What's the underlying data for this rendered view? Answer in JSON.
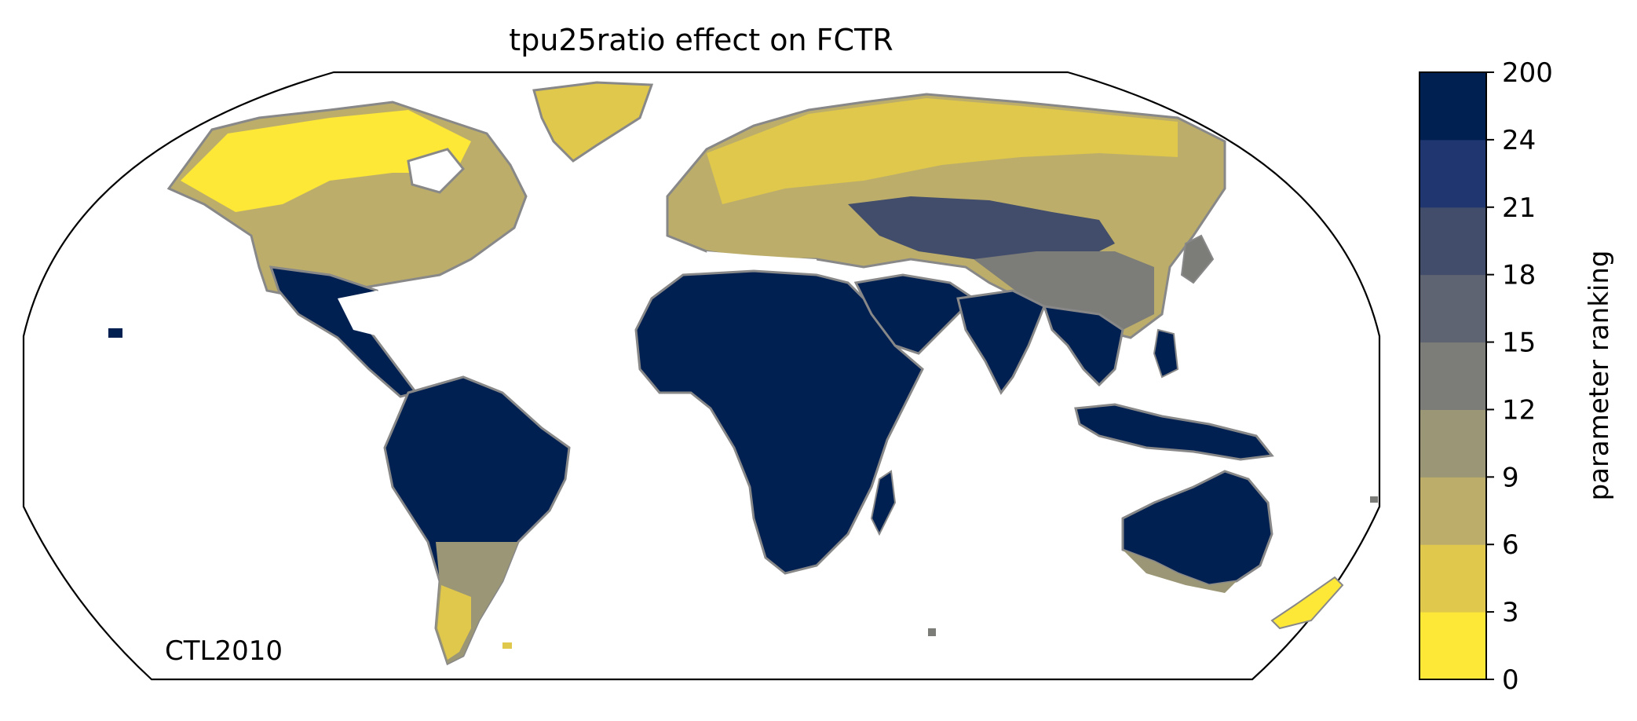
{
  "title": "tpu25ratio effect on FCTR",
  "annotation": "CTL2010",
  "colorbar": {
    "label": "parameter ranking",
    "ticks": [
      "0",
      "3",
      "6",
      "9",
      "12",
      "15",
      "18",
      "21",
      "24",
      "200"
    ],
    "colors": [
      "#fde737",
      "#dfc84c",
      "#bcae6a",
      "#9b9675",
      "#7c7c78",
      "#5f6472",
      "#424d6b",
      "#1f3670",
      "#012052"
    ]
  },
  "map": {
    "projection": "Robinson",
    "ocean_color": "#ffffff",
    "coastline_color": "#888888",
    "land_fill_default": "#012052",
    "regions": [
      {
        "name": "North America",
        "ranking_class": "mixed yellow/tan"
      },
      {
        "name": "Greenland",
        "ranking_class": "yellow"
      },
      {
        "name": "Europe & Northern Asia",
        "ranking_class": "yellow/tan/grey"
      },
      {
        "name": "Central Asia & China",
        "ranking_class": "grey/blue"
      },
      {
        "name": "Africa",
        "ranking_class": "dark navy"
      },
      {
        "name": "South America",
        "ranking_class": "dark navy"
      },
      {
        "name": "Southern South America",
        "ranking_class": "tan/yellow"
      },
      {
        "name": "South & Southeast Asia",
        "ranking_class": "dark navy"
      },
      {
        "name": "Australia",
        "ranking_class": "dark navy"
      },
      {
        "name": "New Zealand",
        "ranking_class": "yellow"
      }
    ]
  }
}
